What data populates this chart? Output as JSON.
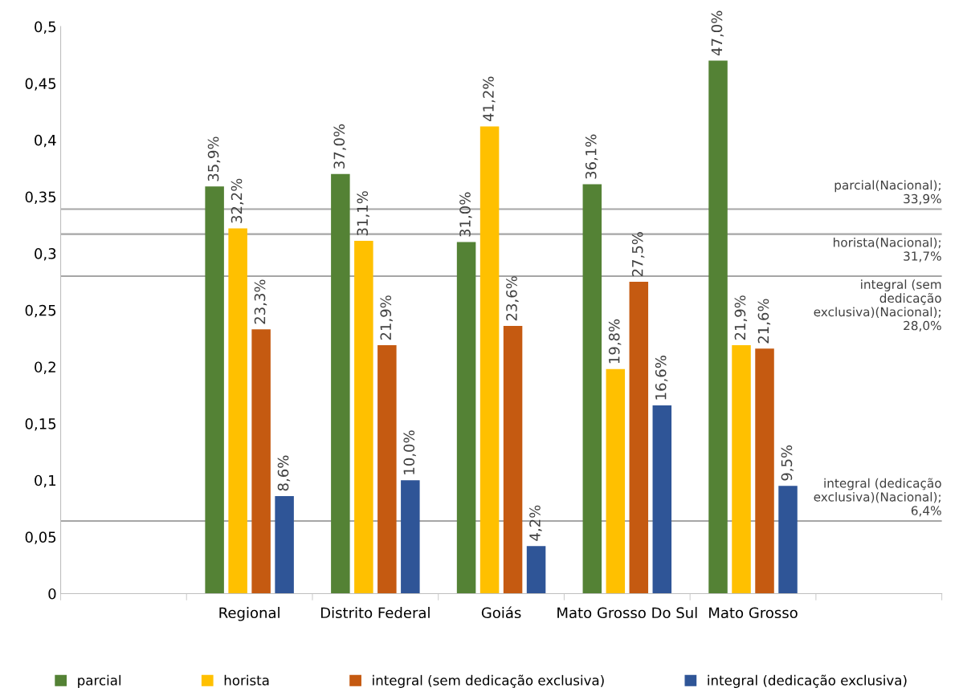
{
  "chart_data": {
    "type": "bar",
    "categories": [
      null,
      "Regional",
      "Distrito Federal",
      "Goiás",
      "Mato Grosso Do Sul",
      "Mato Grosso",
      null
    ],
    "series": [
      {
        "name": "parcial",
        "color": "#548235",
        "values": [
          null,
          0.359,
          0.37,
          0.31,
          0.361,
          0.47,
          null
        ],
        "value_labels": [
          null,
          "35,9%",
          "37,0%",
          "31,0%",
          "36,1%",
          "47,0%",
          null
        ]
      },
      {
        "name": "horista",
        "color": "#ffc000",
        "values": [
          null,
          0.322,
          0.311,
          0.412,
          0.198,
          0.219,
          null
        ],
        "value_labels": [
          null,
          "32,2%",
          "31,1%",
          "41,2%",
          "19,8%",
          "21,9%",
          null
        ]
      },
      {
        "name": "integral (sem dedicação exclusiva)",
        "color": "#c55a11",
        "values": [
          null,
          0.233,
          0.219,
          0.236,
          0.275,
          0.216,
          null
        ],
        "value_labels": [
          null,
          "23,3%",
          "21,9%",
          "23,6%",
          "27,5%",
          "21,6%",
          null
        ]
      },
      {
        "name": "integral (dedicação exclusiva)",
        "color": "#2f5597",
        "values": [
          null,
          0.086,
          0.1,
          0.042,
          0.166,
          0.095,
          null
        ],
        "value_labels": [
          null,
          "8,6%",
          "10,0%",
          "4,2%",
          "16,6%",
          "9,5%",
          null
        ]
      }
    ],
    "ylim": [
      0,
      0.5
    ],
    "yticks": [
      0,
      {
        "value": 0.05,
        "label": "0,05"
      },
      {
        "value": 0.1,
        "label": "0,1"
      },
      {
        "value": 0.15,
        "label": "0,15"
      },
      {
        "value": 0.2,
        "label": "0,2"
      },
      {
        "value": 0.25,
        "label": "0,25"
      },
      {
        "value": 0.3,
        "label": "0,3"
      },
      {
        "value": 0.35,
        "label": "0,35"
      },
      {
        "value": 0.4,
        "label": "0,4"
      },
      {
        "value": 0.45,
        "label": "0,45"
      },
      {
        "value": 0.5,
        "label": "0,5"
      }
    ],
    "ref_lines": [
      {
        "axis": "y",
        "value": 0.339,
        "label": "parcial(Nacional); 33,9%",
        "color": "#a6a6a6"
      },
      {
        "axis": "y",
        "value": 0.317,
        "label": "horista(Nacional); 31,7%",
        "color": "#a6a6a6"
      },
      {
        "axis": "y",
        "value": 0.28,
        "label": "integral (sem dedicação exclusiva)(Nacional); 28,0%",
        "color": "#a6a6a6"
      },
      {
        "axis": "y",
        "value": 0.064,
        "label": "integral (dedicação exclusiva)(Nacional); 6,4%",
        "color": "#a6a6a6"
      }
    ],
    "grid": false,
    "legend": "bottom"
  }
}
